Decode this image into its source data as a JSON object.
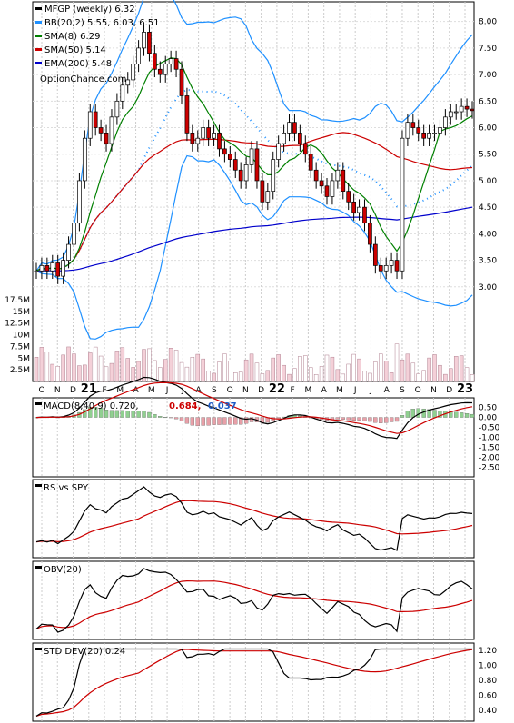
{
  "chart_data": {
    "type": "line",
    "title": "MFGP (weekly) 6.32",
    "watermark": "OptionChance.com",
    "x_tick_labels": [
      "O",
      "N",
      "D",
      "21",
      "F",
      "M",
      "A",
      "M",
      "J",
      "J",
      "A",
      "S",
      "O",
      "N",
      "D",
      "22",
      "F",
      "M",
      "A",
      "M",
      "J",
      "J",
      "A",
      "S",
      "O",
      "N",
      "D",
      "23"
    ],
    "x_year_labels": [
      "21",
      "22",
      "23"
    ],
    "colors": {
      "up": "#ffffff",
      "down": "#cc0000",
      "bb": "#1e90ff",
      "bb_mid": "#1e90ff",
      "sma8": "#008000",
      "sma50": "#cc0000",
      "ema200": "#0000cc",
      "volume": "#e8a0b0"
    },
    "main": {
      "legend": [
        {
          "label": "MFGP (weekly) 6.32",
          "color": "#000000"
        },
        {
          "label": "BB(20,2) 5.55, 6.03, 6.51",
          "color": "#1e90ff"
        },
        {
          "label": "SMA(8) 6.29",
          "color": "#008000"
        },
        {
          "label": "SMA(50) 5.14",
          "color": "#cc0000"
        },
        {
          "label": "EMA(200) 5.48",
          "color": "#0000cc"
        }
      ],
      "yticks": [
        "8.00",
        "7.50",
        "7.00",
        "6.50",
        "6.00",
        "5.50",
        "5.00",
        "4.50",
        "4.00",
        "3.50",
        "3.00"
      ],
      "ylim": [
        2.5,
        8.2
      ],
      "volume_ticks": [
        "17.5M",
        "15M",
        "12.5M",
        "10M",
        "7.5M",
        "5M",
        "2.5M"
      ],
      "volume_max": 17.5,
      "close": [
        3.3,
        3.4,
        3.3,
        3.45,
        3.2,
        3.5,
        3.8,
        4.2,
        5.0,
        5.8,
        6.3,
        6.0,
        5.9,
        5.7,
        6.2,
        6.5,
        6.8,
        6.9,
        7.2,
        7.5,
        7.8,
        7.4,
        7.1,
        7.0,
        7.2,
        7.3,
        7.1,
        6.6,
        5.9,
        5.7,
        5.8,
        6.0,
        5.8,
        5.9,
        5.6,
        5.5,
        5.4,
        5.2,
        5.0,
        5.3,
        5.6,
        5.0,
        4.6,
        4.8,
        5.4,
        5.7,
        5.9,
        6.1,
        5.9,
        5.7,
        5.5,
        5.2,
        5.0,
        4.9,
        4.7,
        5.0,
        5.2,
        4.8,
        4.6,
        4.4,
        4.5,
        4.2,
        3.8,
        3.4,
        3.3,
        3.4,
        3.5,
        3.3,
        5.8,
        6.1,
        6.0,
        5.9,
        5.8,
        5.9,
        5.9,
        6.0,
        6.2,
        6.3,
        6.3,
        6.4,
        6.35,
        6.32
      ]
    },
    "macd": {
      "label": "MACD(8,40,9) 0.720,",
      "signal_label": "0.684,",
      "hist_label": "0.037",
      "yticks": [
        "0.50",
        "0.00",
        "-0.50",
        "-1.00",
        "-1.50",
        "-2.00",
        "-2.50"
      ],
      "ylim": [
        -2.8,
        0.8
      ]
    },
    "rs": {
      "label": "RS vs SPY"
    },
    "obv": {
      "label": "OBV(20)"
    },
    "std": {
      "label": "STD DEV(20) 0.24",
      "yticks": [
        "1.20",
        "1.00",
        "0.80",
        "0.60",
        "0.40"
      ],
      "ylim": [
        0.3,
        1.25
      ]
    }
  }
}
